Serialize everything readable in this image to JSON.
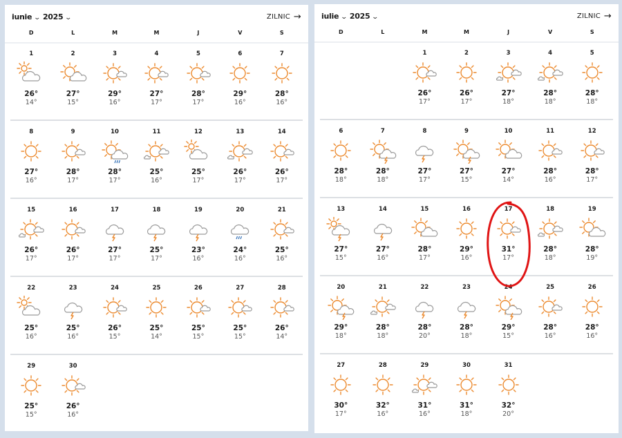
{
  "colors": {
    "sun": "#ec8a2e",
    "cloud": "#9a9a9a",
    "rain": "#2f6db5",
    "highlight": "#e01414",
    "background": "#d5dfeb"
  },
  "weekdays": [
    "D",
    "L",
    "M",
    "M",
    "J",
    "V",
    "S"
  ],
  "months": [
    {
      "month": "iunie",
      "year": "2025",
      "link_label": "ZILNIC",
      "link_icon": "arrow-right-icon",
      "days": [
        {
          "d": "1",
          "icon": "cloud-sun",
          "hi": "26°",
          "lo": "14°"
        },
        {
          "d": "2",
          "icon": "sun-cloud",
          "hi": "27°",
          "lo": "15°"
        },
        {
          "d": "3",
          "icon": "sun-small-cloud",
          "hi": "29°",
          "lo": "16°"
        },
        {
          "d": "4",
          "icon": "sun-small-cloud",
          "hi": "27°",
          "lo": "17°"
        },
        {
          "d": "5",
          "icon": "sun-small-cloud",
          "hi": "28°",
          "lo": "17°"
        },
        {
          "d": "6",
          "icon": "sun",
          "hi": "29°",
          "lo": "16°"
        },
        {
          "d": "7",
          "icon": "sun",
          "hi": "28°",
          "lo": "16°"
        },
        {
          "d": "8",
          "icon": "sun",
          "hi": "27°",
          "lo": "16°"
        },
        {
          "d": "9",
          "icon": "sun-small-cloud",
          "hi": "28°",
          "lo": "17°"
        },
        {
          "d": "10",
          "icon": "sun-cloud-rain",
          "hi": "28°",
          "lo": "17°"
        },
        {
          "d": "11",
          "icon": "sun-small-clouds",
          "hi": "25°",
          "lo": "16°"
        },
        {
          "d": "12",
          "icon": "cloud-sun",
          "hi": "25°",
          "lo": "17°"
        },
        {
          "d": "13",
          "icon": "sun-small-clouds",
          "hi": "26°",
          "lo": "17°"
        },
        {
          "d": "14",
          "icon": "sun-small-cloud",
          "hi": "26°",
          "lo": "17°"
        },
        {
          "d": "15",
          "icon": "sun-small-clouds",
          "hi": "26°",
          "lo": "17°"
        },
        {
          "d": "16",
          "icon": "sun-small-cloud",
          "hi": "26°",
          "lo": "17°"
        },
        {
          "d": "17",
          "icon": "cloud-thunder",
          "hi": "27°",
          "lo": "17°"
        },
        {
          "d": "18",
          "icon": "cloud-thunder",
          "hi": "25°",
          "lo": "17°"
        },
        {
          "d": "19",
          "icon": "cloud-thunder",
          "hi": "23°",
          "lo": "16°"
        },
        {
          "d": "20",
          "icon": "cloud-rain",
          "hi": "24°",
          "lo": "16°"
        },
        {
          "d": "21",
          "icon": "sun-small-cloud",
          "hi": "25°",
          "lo": "16°"
        },
        {
          "d": "22",
          "icon": "cloud-sun",
          "hi": "25°",
          "lo": "16°"
        },
        {
          "d": "23",
          "icon": "cloud-thunder",
          "hi": "25°",
          "lo": "16°"
        },
        {
          "d": "24",
          "icon": "sun-small-cloud",
          "hi": "26°",
          "lo": "15°"
        },
        {
          "d": "25",
          "icon": "sun",
          "hi": "25°",
          "lo": "14°"
        },
        {
          "d": "26",
          "icon": "sun-small-cloud",
          "hi": "25°",
          "lo": "15°"
        },
        {
          "d": "27",
          "icon": "sun-small-cloud",
          "hi": "25°",
          "lo": "15°"
        },
        {
          "d": "28",
          "icon": "sun-small-cloud",
          "hi": "26°",
          "lo": "14°"
        },
        {
          "d": "29",
          "icon": "sun",
          "hi": "25°",
          "lo": "15°"
        },
        {
          "d": "30",
          "icon": "sun-small-cloud",
          "hi": "26°",
          "lo": "16°"
        }
      ]
    },
    {
      "month": "iulie",
      "year": "2025",
      "link_label": "ZILNIC",
      "link_icon": "arrow-right-icon",
      "highlighted_day": "17",
      "days": [
        {
          "d": "1",
          "icon": "sun-small-cloud",
          "hi": "26°",
          "lo": "17°"
        },
        {
          "d": "2",
          "icon": "sun",
          "hi": "26°",
          "lo": "17°"
        },
        {
          "d": "3",
          "icon": "sun-small-clouds",
          "hi": "27°",
          "lo": "18°"
        },
        {
          "d": "4",
          "icon": "sun-small-clouds",
          "hi": "28°",
          "lo": "18°"
        },
        {
          "d": "5",
          "icon": "sun",
          "hi": "28°",
          "lo": "18°"
        },
        {
          "d": "6",
          "icon": "sun",
          "hi": "28°",
          "lo": "18°"
        },
        {
          "d": "7",
          "icon": "sun-cloud-thunder",
          "hi": "28°",
          "lo": "18°"
        },
        {
          "d": "8",
          "icon": "cloud-thunder",
          "hi": "27°",
          "lo": "17°"
        },
        {
          "d": "9",
          "icon": "sun-cloud-thunder",
          "hi": "27°",
          "lo": "15°"
        },
        {
          "d": "10",
          "icon": "sun-cloud",
          "hi": "27°",
          "lo": "14°"
        },
        {
          "d": "11",
          "icon": "sun-small-cloud",
          "hi": "28°",
          "lo": "16°"
        },
        {
          "d": "12",
          "icon": "sun-small-cloud",
          "hi": "28°",
          "lo": "17°"
        },
        {
          "d": "13",
          "icon": "cloud-sun-thunder",
          "hi": "27°",
          "lo": "15°"
        },
        {
          "d": "14",
          "icon": "cloud-thunder",
          "hi": "27°",
          "lo": "16°"
        },
        {
          "d": "15",
          "icon": "sun-cloud",
          "hi": "28°",
          "lo": "17°"
        },
        {
          "d": "16",
          "icon": "sun",
          "hi": "29°",
          "lo": "16°"
        },
        {
          "d": "17",
          "icon": "sun-small-cloud",
          "hi": "31°",
          "lo": "17°"
        },
        {
          "d": "18",
          "icon": "sun-small-clouds",
          "hi": "28°",
          "lo": "18°"
        },
        {
          "d": "19",
          "icon": "sun-cloud",
          "hi": "28°",
          "lo": "19°"
        },
        {
          "d": "20",
          "icon": "sun-cloud-thunder",
          "hi": "29°",
          "lo": "18°"
        },
        {
          "d": "21",
          "icon": "sun-small-clouds",
          "hi": "28°",
          "lo": "18°"
        },
        {
          "d": "22",
          "icon": "cloud-thunder",
          "hi": "28°",
          "lo": "20°"
        },
        {
          "d": "23",
          "icon": "cloud-thunder",
          "hi": "28°",
          "lo": "18°"
        },
        {
          "d": "24",
          "icon": "sun-cloud-thunder",
          "hi": "29°",
          "lo": "15°"
        },
        {
          "d": "25",
          "icon": "sun-small-cloud",
          "hi": "28°",
          "lo": "16°"
        },
        {
          "d": "26",
          "icon": "sun",
          "hi": "28°",
          "lo": "16°"
        },
        {
          "d": "27",
          "icon": "sun",
          "hi": "30°",
          "lo": "17°"
        },
        {
          "d": "28",
          "icon": "sun",
          "hi": "32°",
          "lo": "16°"
        },
        {
          "d": "29",
          "icon": "sun-small-clouds",
          "hi": "31°",
          "lo": "16°"
        },
        {
          "d": "30",
          "icon": "sun",
          "hi": "31°",
          "lo": "18°"
        },
        {
          "d": "31",
          "icon": "sun",
          "hi": "32°",
          "lo": "20°"
        }
      ]
    }
  ]
}
